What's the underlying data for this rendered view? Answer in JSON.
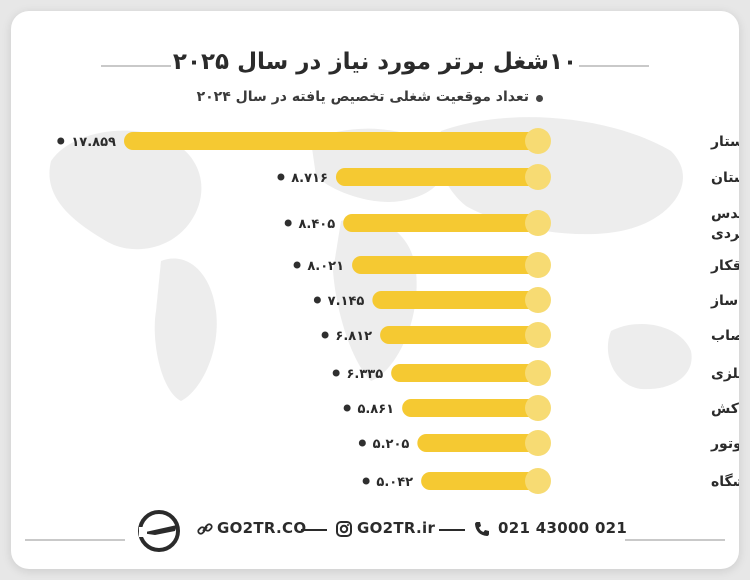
{
  "title": "۱۰شغل برتر مورد نیاز در سال ۲۰۲۵",
  "subtitle": "تعداد موقعیت شغلی تخصیص یافته در سال ۲۰۲۴",
  "colors": {
    "bar": "#f5c932",
    "bar_end": "#f7db73",
    "dot": "#2f2f2f",
    "text": "#2b2b2b"
  },
  "chart_data": {
    "type": "bar",
    "orientation": "horizontal",
    "title": "۱۰شغل برتر مورد نیاز در سال ۲۰۲۵",
    "subtitle": "تعداد موقعیت شغلی تخصیص یافته در سال ۲۰۲۴",
    "categories": [
      "پرستار",
      "معلم دبیرستان",
      "برنامه نویس و مهندس\nبرنامه های کاربردی",
      "برقکار",
      "مدیر ساخت و ساز",
      "نجار و نصاب",
      "سازنده ماشین آلات فلزی",
      "لوله کش",
      "مکانیک موتور",
      "استاد و مدرس دانشگاه"
    ],
    "values": [
      17859,
      8716,
      8405,
      8021,
      7145,
      6812,
      6335,
      5861,
      5205,
      5042
    ],
    "value_labels": [
      "۱۷.۸۵۹",
      "۸.۷۱۶",
      "۸.۴۰۵",
      "۸.۰۲۱",
      "۷.۱۴۵",
      "۶.۸۱۲",
      "۶.۳۳۵",
      "۵.۸۶۱",
      "۵.۲۰۵",
      "۵.۰۴۲"
    ]
  },
  "footer": {
    "website": "GO2TR.CO",
    "instagram": "GO2TR.ir",
    "phone": "021 43000 021",
    "icons": [
      "logo-icon",
      "link-icon",
      "instagram-icon",
      "phone-icon"
    ]
  }
}
